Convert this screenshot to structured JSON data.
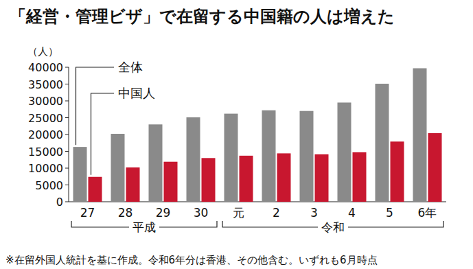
{
  "chart_data": {
    "type": "bar",
    "title": "「経営・管理ビザ」で在留する中国籍の人は増えた",
    "y_label": "（人）",
    "note": "※在留外国人統計を基に作成。令和6年分は香港、その他含む。いずれも6月時点",
    "categories": [
      "27",
      "28",
      "29",
      "30",
      "元",
      "2",
      "3",
      "4",
      "5",
      "6年"
    ],
    "category_groups": [
      {
        "label": "平成",
        "size": 4
      },
      {
        "label": "令和",
        "size": 6
      }
    ],
    "series": [
      {
        "name": "全体",
        "color": "#8a8a8a",
        "values": [
          16300,
          20200,
          23000,
          25100,
          26200,
          27200,
          27000,
          29500,
          35100,
          39700
        ]
      },
      {
        "name": "中国人",
        "color": "#c8172f",
        "values": [
          7400,
          10200,
          11900,
          13000,
          13700,
          14400,
          14100,
          14700,
          17900,
          20400
        ]
      }
    ],
    "ylim": [
      0,
      40000
    ],
    "yticks": [
      0,
      5000,
      10000,
      15000,
      20000,
      25000,
      30000,
      35000,
      40000
    ],
    "grid": false,
    "legend": "top-left"
  }
}
